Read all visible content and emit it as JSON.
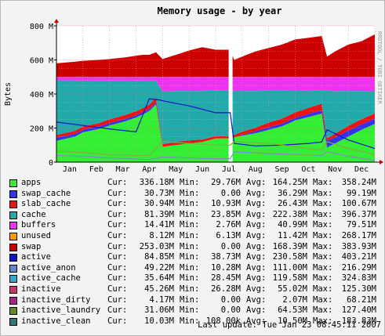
{
  "chart_data": {
    "type": "area",
    "title": "Memory usage - by year",
    "ylabel": "Bytes",
    "side_label": "RRDTOOL / TOBI OETIKER",
    "ylim": [
      0,
      800
    ],
    "y_ticks": [
      "0",
      "200 M",
      "400 M",
      "600 M",
      "800 M"
    ],
    "months": [
      "Jan",
      "Feb",
      "Mar",
      "Apr",
      "May",
      "Jun",
      "Jul",
      "Aug",
      "Sep",
      "Oct",
      "Nov",
      "Dec"
    ],
    "grid": true,
    "gap_month": 6.55,
    "x": [
      0,
      0.7,
      1,
      1.6,
      2,
      2.6,
      3,
      3.25,
      3.5,
      3.75,
      4,
      4.5,
      5,
      5.5,
      6,
      6.55,
      6.7,
      7,
      7.5,
      8,
      8.5,
      9,
      9.5,
      10,
      10.2,
      10.5,
      11,
      11.5,
      12
    ],
    "series": [
      {
        "key": "apps",
        "color": "#33ee33",
        "values": [
          125,
          150,
          175,
          195,
          215,
          240,
          262,
          280,
          300,
          340,
          90,
          100,
          110,
          118,
          140,
          140,
          145,
          155,
          170,
          190,
          210,
          245,
          265,
          285,
          85,
          110,
          150,
          190,
          225
        ]
      },
      {
        "key": "swap_cache",
        "color": "#3333ee",
        "values": [
          18,
          16,
          15,
          14,
          14,
          14,
          13,
          12,
          12,
          10,
          0,
          0,
          0,
          0,
          0,
          0,
          0,
          5,
          10,
          15,
          15,
          15,
          18,
          20,
          40,
          35,
          35,
          32,
          30
        ]
      },
      {
        "key": "slab_cache",
        "color": "#ee1111",
        "values": [
          16,
          18,
          19,
          20,
          22,
          23,
          24,
          25,
          25,
          28,
          15,
          18,
          18,
          15,
          12,
          12,
          14,
          18,
          22,
          27,
          30,
          32,
          35,
          38,
          15,
          22,
          28,
          30,
          31
        ]
      },
      {
        "key": "cache",
        "color": "#22aaaa",
        "values": [
          321,
          296,
          270,
          250,
          228,
          202,
          180,
          162,
          142,
          100,
          310,
          300,
          290,
          285,
          270,
          270,
          260,
          240,
          215,
          188,
          165,
          126,
          102,
          80,
          282,
          250,
          205,
          165,
          130
        ]
      },
      {
        "key": "buffers",
        "color": "#ee33ee",
        "values": [
          20,
          20,
          21,
          21,
          21,
          21,
          21,
          21,
          21,
          22,
          85,
          82,
          82,
          82,
          78,
          78,
          81,
          82,
          83,
          80,
          80,
          82,
          80,
          77,
          78,
          83,
          82,
          83,
          84
        ]
      },
      {
        "key": "unused",
        "color": "#ff9900",
        "values": [
          0,
          0,
          0,
          0,
          0,
          0,
          0,
          0,
          0,
          0,
          0,
          0,
          0,
          0,
          0,
          0,
          0,
          0,
          0,
          0,
          0,
          0,
          0,
          0,
          0,
          0,
          0,
          0,
          0
        ]
      },
      {
        "key": "swap",
        "color": "#cc0000",
        "values": [
          80,
          90,
          95,
          100,
          105,
          115,
          125,
          130,
          130,
          145,
          105,
          130,
          155,
          175,
          160,
          160,
          100,
          120,
          150,
          170,
          190,
          220,
          230,
          240,
          120,
          150,
          190,
          210,
          250
        ]
      }
    ]
  },
  "legend": {
    "cur_label": "Cur:",
    "min_label": "Min:",
    "avg_label": "Avg:",
    "max_label": "Max:",
    "rows": [
      {
        "name": "apps",
        "color": "#33ee33",
        "cur": "336.18M",
        "min": "29.76M",
        "avg": "164.25M",
        "max": "358.24M"
      },
      {
        "name": "swap_cache",
        "color": "#3333ee",
        "cur": "30.73M",
        "min": "0.00",
        "avg": "36.29M",
        "max": "99.19M"
      },
      {
        "name": "slab_cache",
        "color": "#ee1111",
        "cur": "30.94M",
        "min": "10.93M",
        "avg": "26.43M",
        "max": "100.67M"
      },
      {
        "name": "cache",
        "color": "#22aaaa",
        "cur": "81.39M",
        "min": "23.85M",
        "avg": "222.38M",
        "max": "396.37M"
      },
      {
        "name": "buffers",
        "color": "#ee33ee",
        "cur": "14.41M",
        "min": "2.76M",
        "avg": "40.99M",
        "max": "79.51M"
      },
      {
        "name": "unused",
        "color": "#ff9900",
        "cur": "8.12M",
        "min": "6.13M",
        "avg": "11.42M",
        "max": "268.17M"
      },
      {
        "name": "swap",
        "color": "#cc0000",
        "cur": "253.03M",
        "min": "0.00",
        "avg": "168.39M",
        "max": "383.93M"
      },
      {
        "name": "active",
        "color": "#1111cc",
        "cur": "84.85M",
        "min": "38.73M",
        "avg": "230.58M",
        "max": "403.21M"
      },
      {
        "name": "active_anon",
        "color": "#6688cc",
        "cur": "49.22M",
        "min": "10.28M",
        "avg": "111.00M",
        "max": "216.29M"
      },
      {
        "name": "active_cache",
        "color": "#33aacc",
        "cur": "35.64M",
        "min": "28.45M",
        "avg": "119.58M",
        "max": "324.83M"
      },
      {
        "name": "inactive",
        "color": "#cc3366",
        "cur": "45.26M",
        "min": "26.28M",
        "avg": "55.02M",
        "max": "125.30M"
      },
      {
        "name": "inactive_dirty",
        "color": "#aa2288",
        "cur": "4.17M",
        "min": "0.00",
        "avg": "2.07M",
        "max": "68.21M"
      },
      {
        "name": "inactive_laundry",
        "color": "#668822",
        "cur": "31.06M",
        "min": "0.00",
        "avg": "64.53M",
        "max": "127.40M"
      },
      {
        "name": "inactive_clean",
        "color": "#337777",
        "cur": "10.03M",
        "min": "108.00k",
        "avg": "10.50M",
        "max": "183.83M"
      }
    ]
  },
  "footer": {
    "last_update": "Last update: Tue Jan 23 08:45:11 2007"
  },
  "lines": [
    {
      "key": "active",
      "color": "#1111cc",
      "x": [
        0,
        1,
        2,
        3,
        3.5,
        3.9,
        4,
        5,
        6,
        6.55,
        6.7,
        7.5,
        8.5,
        9.5,
        10,
        10.2,
        11,
        12
      ],
      "values": [
        235,
        215,
        195,
        178,
        372,
        365,
        360,
        330,
        290,
        290,
        110,
        95,
        100,
        110,
        118,
        190,
        130,
        80
      ]
    },
    {
      "key": "inactive_laundry",
      "color": "#88aa44",
      "x": [
        0,
        1,
        2,
        3,
        3.5,
        4,
        5,
        6,
        6.55,
        6.7,
        8,
        9,
        10,
        10.2,
        11,
        12
      ],
      "values": [
        65,
        55,
        45,
        40,
        40,
        120,
        110,
        100,
        100,
        120,
        110,
        90,
        70,
        120,
        80,
        45
      ]
    },
    {
      "key": "inactive_clean",
      "color": "#8888cc",
      "x": [
        0,
        2,
        3.5,
        4,
        5,
        6,
        6.55,
        6.7,
        8,
        10,
        10.2,
        11,
        12
      ],
      "values": [
        40,
        25,
        15,
        30,
        25,
        20,
        20,
        60,
        50,
        40,
        60,
        35,
        10
      ]
    }
  ]
}
